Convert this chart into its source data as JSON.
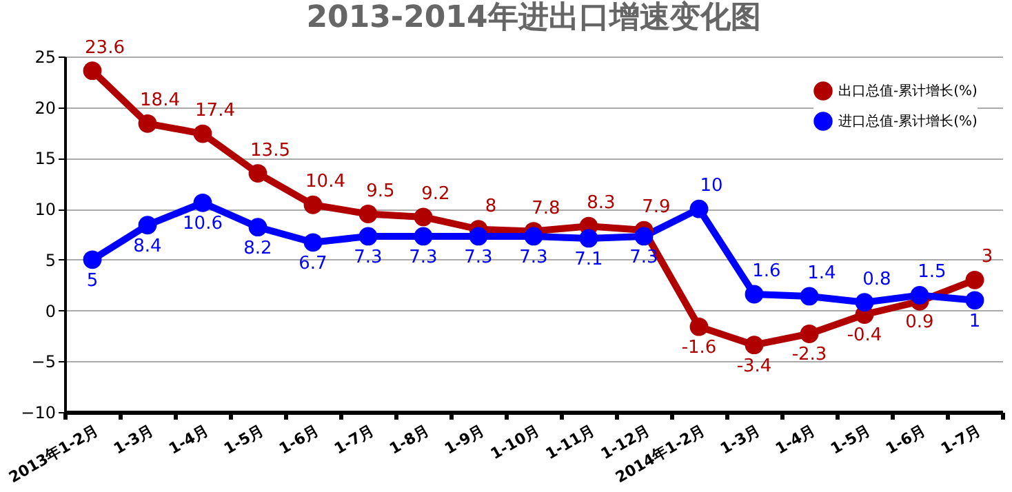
{
  "chart_data": {
    "type": "line",
    "title": "2013-2014年进出口增速变化图",
    "categories": [
      "2013年1-2月",
      "1-3月",
      "1-4月",
      "1-5月",
      "1-6月",
      "1-7月",
      "1-8月",
      "1-9月",
      "1-10月",
      "1-11月",
      "1-12月",
      "2014年1-2月",
      "1-3月",
      "1-4月",
      "1-5月",
      "1-6月",
      "1-7月"
    ],
    "series": [
      {
        "name": "出口总值-累计增长(%)",
        "color": "#b00000",
        "values": [
          23.6,
          18.4,
          17.4,
          13.5,
          10.4,
          9.5,
          9.2,
          8,
          7.8,
          8.3,
          7.9,
          -1.6,
          -3.4,
          -2.3,
          -0.4,
          0.9,
          3
        ]
      },
      {
        "name": "进口总值-累计增长(%)",
        "color": "#0000ff",
        "values": [
          5,
          8.4,
          10.6,
          8.2,
          6.7,
          7.3,
          7.3,
          7.3,
          7.3,
          7.1,
          7.3,
          10,
          1.6,
          1.4,
          0.8,
          1.5,
          1
        ]
      }
    ],
    "ylim": [
      -10,
      25
    ],
    "yticks": [
      -10,
      -5,
      0,
      5,
      10,
      15,
      20,
      25
    ],
    "grid": "y",
    "legend": "top right",
    "marker": "circle",
    "line_style": "solid",
    "data_labels": true
  }
}
